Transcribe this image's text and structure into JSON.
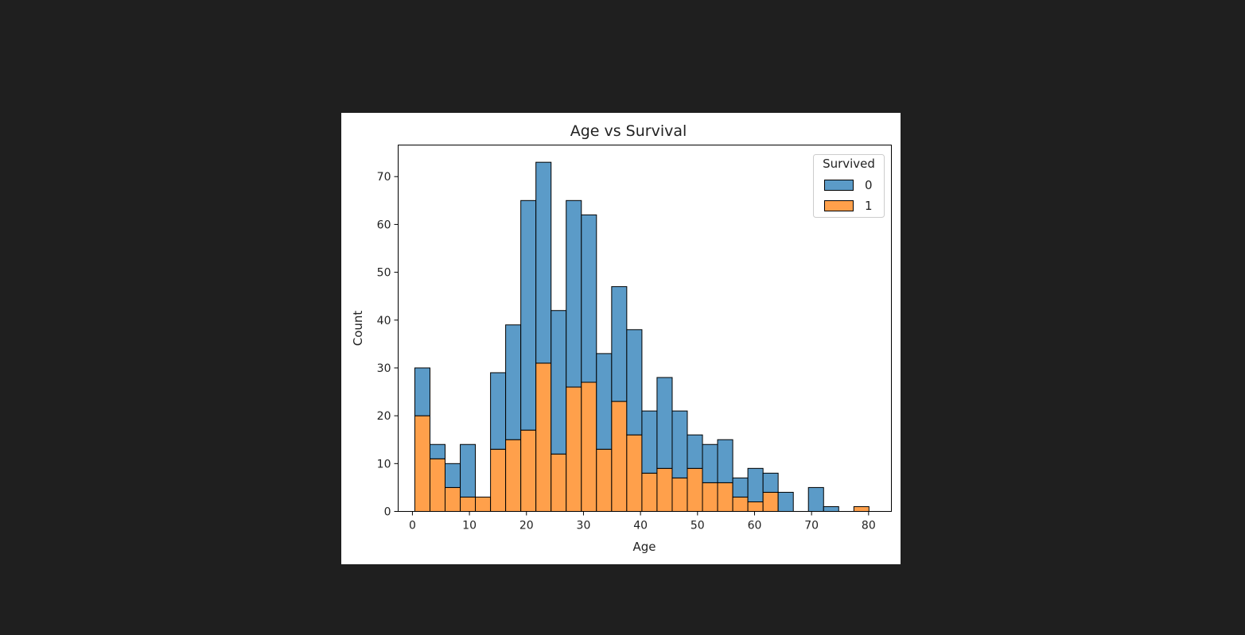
{
  "chart_data": {
    "type": "bar",
    "stacked": true,
    "title": "Age vs Survival",
    "xlabel": "Age",
    "ylabel": "Count",
    "xlim": [
      -2.5,
      84
    ],
    "ylim": [
      0,
      76.6
    ],
    "xticks": [
      0,
      10,
      20,
      30,
      40,
      50,
      60,
      70,
      80
    ],
    "yticks": [
      0,
      10,
      20,
      30,
      40,
      50,
      60,
      70
    ],
    "bin_edges": [
      0.42,
      3.08,
      5.73,
      8.39,
      11.04,
      13.7,
      16.35,
      19.01,
      21.66,
      24.32,
      26.97,
      29.63,
      32.28,
      34.94,
      37.59,
      40.25,
      42.9,
      45.56,
      48.21,
      50.87,
      53.52,
      56.18,
      58.83,
      61.49,
      64.14,
      66.8,
      69.45,
      72.11,
      74.76,
      77.42,
      80.07
    ],
    "series": [
      {
        "name": "0",
        "color": "#5b9bc8",
        "values": [
          10,
          3,
          5,
          11,
          0,
          16,
          24,
          48,
          42,
          30,
          39,
          35,
          20,
          24,
          22,
          13,
          19,
          14,
          7,
          8,
          9,
          4,
          7,
          4,
          4,
          0,
          5,
          1,
          0,
          0
        ]
      },
      {
        "name": "1",
        "color": "#ffa04b",
        "values": [
          20,
          11,
          5,
          3,
          3,
          13,
          15,
          17,
          31,
          12,
          26,
          27,
          13,
          23,
          16,
          8,
          9,
          7,
          9,
          6,
          6,
          3,
          2,
          4,
          0,
          0,
          0,
          0,
          0,
          1
        ]
      }
    ],
    "legend": {
      "title": "Survived",
      "position": "top-right"
    },
    "grid": false
  }
}
